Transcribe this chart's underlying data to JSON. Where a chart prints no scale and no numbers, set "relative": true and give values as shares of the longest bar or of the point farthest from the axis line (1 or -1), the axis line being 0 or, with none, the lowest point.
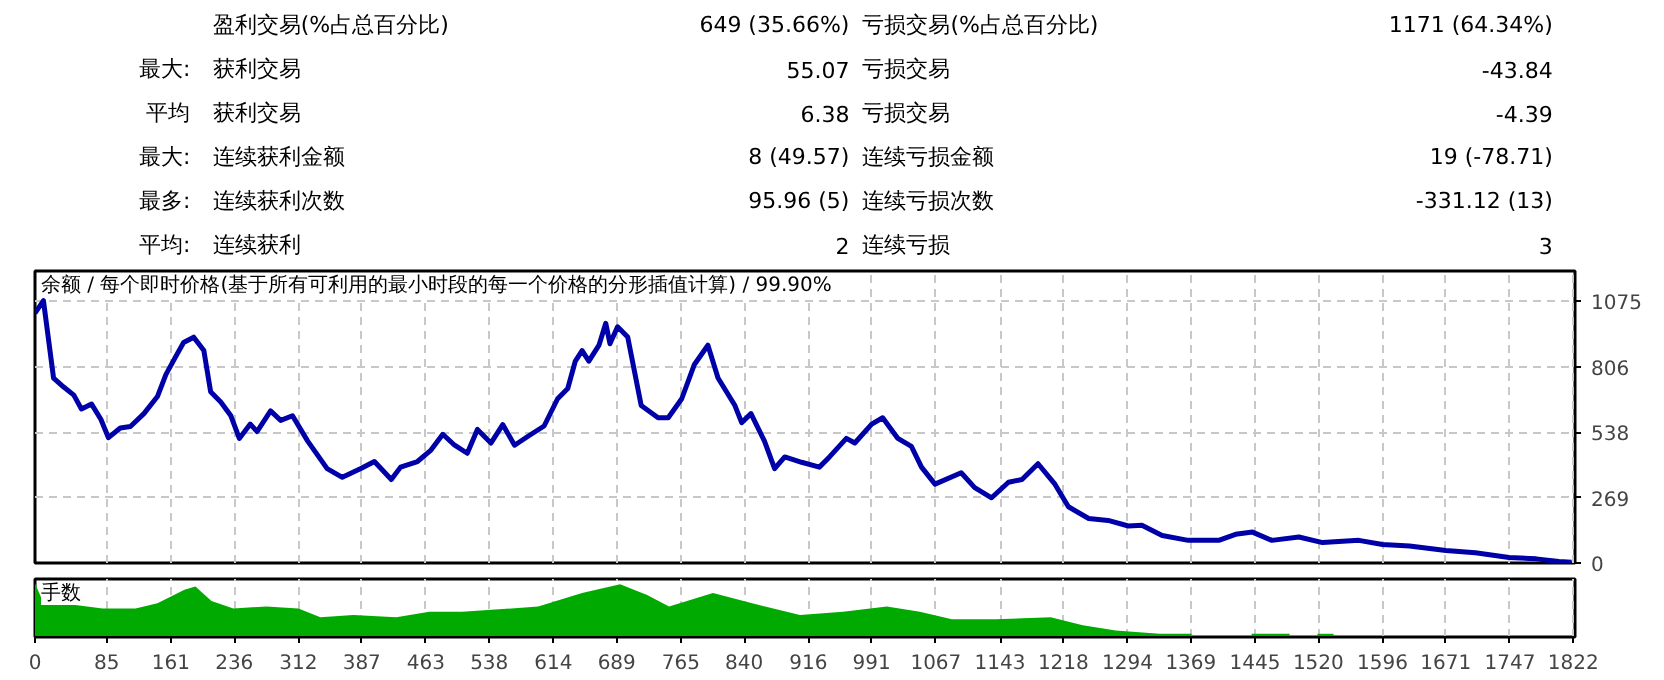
{
  "chart_data": [
    {
      "type": "other",
      "annotations": [
        [
          "盈利交易(%占总百分比)",
          "649 (35.66%)",
          "亏损交易(%占总百分比)",
          "1171 (64.34%)"
        ],
        [
          "最大:",
          "获利交易",
          "55.07",
          "亏损交易",
          "-43.84"
        ],
        [
          "平均",
          "获利交易",
          "6.38",
          "亏损交易",
          "-4.39"
        ],
        [
          "最大:",
          "连续获利金额",
          "8 (49.57)",
          "连续亏损金额",
          "19 (-78.71)"
        ],
        [
          "最多:",
          "连续获利次数",
          "95.96 (5)",
          "连续亏损次数",
          "-331.12 (13)"
        ],
        [
          "平均:",
          "连续获利",
          "2",
          "连续亏损",
          "3"
        ]
      ]
    },
    {
      "type": "line",
      "title": "余额 / 每个即时价格(基于所有可利用的最小时段的每一个价格的分形插值计算) / 99.90%",
      "xlim": [
        0,
        1824
      ],
      "ylim": [
        0,
        1200
      ],
      "xticks": [
        0,
        85,
        161,
        236,
        312,
        387,
        463,
        538,
        614,
        689,
        765,
        840,
        916,
        991,
        1067,
        1143,
        1218,
        1294,
        1369,
        1445,
        1520,
        1596,
        1671,
        1747,
        1822
      ],
      "yticks": [
        0,
        269,
        538,
        806,
        1075
      ],
      "tick_labels": "y",
      "grid": true,
      "marker": "none",
      "line_style": "solid",
      "series": [
        {
          "color": "#0000a8",
          "x": [
            0,
            10,
            22,
            34,
            46,
            55,
            67,
            78,
            87,
            101,
            113,
            129,
            145,
            155,
            166,
            176,
            188,
            200,
            208,
            220,
            232,
            242,
            255,
            263,
            279,
            291,
            305,
            323,
            346,
            364,
            386,
            402,
            422,
            433,
            453,
            469,
            483,
            497,
            512,
            524,
            540,
            554,
            568,
            584,
            603,
            619,
            631,
            640,
            648,
            656,
            668,
            676,
            681,
            690,
            702,
            718,
            738,
            750,
            766,
            781,
            797,
            809,
            829,
            837,
            848,
            864,
            876,
            888,
            908,
            929,
            941,
            961,
            971,
            991,
            1004,
            1022,
            1038,
            1050,
            1066,
            1097,
            1113,
            1133,
            1153,
            1169,
            1188,
            1208,
            1224,
            1248,
            1271,
            1295,
            1311,
            1335,
            1366,
            1402,
            1422,
            1442,
            1465,
            1497,
            1525,
            1568,
            1596,
            1628,
            1671,
            1706,
            1746,
            1778,
            1805,
            1820
          ],
          "values": [
            1027,
            1078,
            760,
            723,
            690,
            633,
            653,
            591,
            515,
            555,
            561,
            614,
            684,
            774,
            844,
            906,
            928,
            873,
            704,
            662,
            605,
            512,
            571,
            540,
            625,
            586,
            605,
            501,
            388,
            352,
            388,
            417,
            343,
            394,
            417,
            464,
            529,
            484,
            451,
            549,
            493,
            569,
            484,
            521,
            563,
            675,
            717,
            830,
            873,
            830,
            895,
            985,
            901,
            971,
            929,
            647,
            597,
            597,
            675,
            816,
            895,
            760,
            647,
            577,
            614,
            501,
            388,
            436,
            414,
            394,
            436,
            512,
            493,
            571,
            597,
            512,
            479,
            394,
            324,
            371,
            310,
            268,
            332,
            343,
            408,
            324,
            231,
            183,
            175,
            152,
            155,
            113,
            93,
            93,
            118,
            127,
            93,
            107,
            84,
            93,
            76,
            70,
            51,
            42,
            23,
            17,
            6,
            3
          ]
        }
      ]
    },
    {
      "type": "area",
      "title": "手数",
      "relative": true,
      "xlim": [
        0,
        1824
      ],
      "xticks": [
        0,
        85,
        161,
        236,
        312,
        387,
        463,
        538,
        614,
        689,
        765,
        840,
        916,
        991,
        1067,
        1143,
        1218,
        1294,
        1369,
        1445,
        1520,
        1596,
        1671,
        1747,
        1822
      ],
      "tick_labels": "x",
      "grid": true,
      "series": [
        {
          "color": "#00aa00",
          "x": [
            0,
            9,
            41,
            80,
            119,
            145,
            177,
            190,
            209,
            235,
            274,
            312,
            338,
            377,
            428,
            467,
            506,
            545,
            596,
            648,
            693,
            725,
            751,
            803,
            854,
            906,
            957,
            1009,
            1048,
            1086,
            1138,
            1203,
            1241,
            1280,
            1332,
            1370,
            1400,
            1441,
            1486,
            1505,
            1519,
            1538
          ],
          "values": [
            1.0,
            0.67,
            0.61,
            0.53,
            0.53,
            0.63,
            0.88,
            0.94,
            0.67,
            0.53,
            0.57,
            0.53,
            0.37,
            0.41,
            0.37,
            0.47,
            0.47,
            0.51,
            0.57,
            0.82,
            0.98,
            0.78,
            0.57,
            0.82,
            0.61,
            0.41,
            0.47,
            0.57,
            0.47,
            0.33,
            0.33,
            0.37,
            0.22,
            0.12,
            0.06,
            0.06,
            null,
            0.06,
            0.06,
            null,
            0.06,
            0.06
          ]
        }
      ]
    }
  ]
}
